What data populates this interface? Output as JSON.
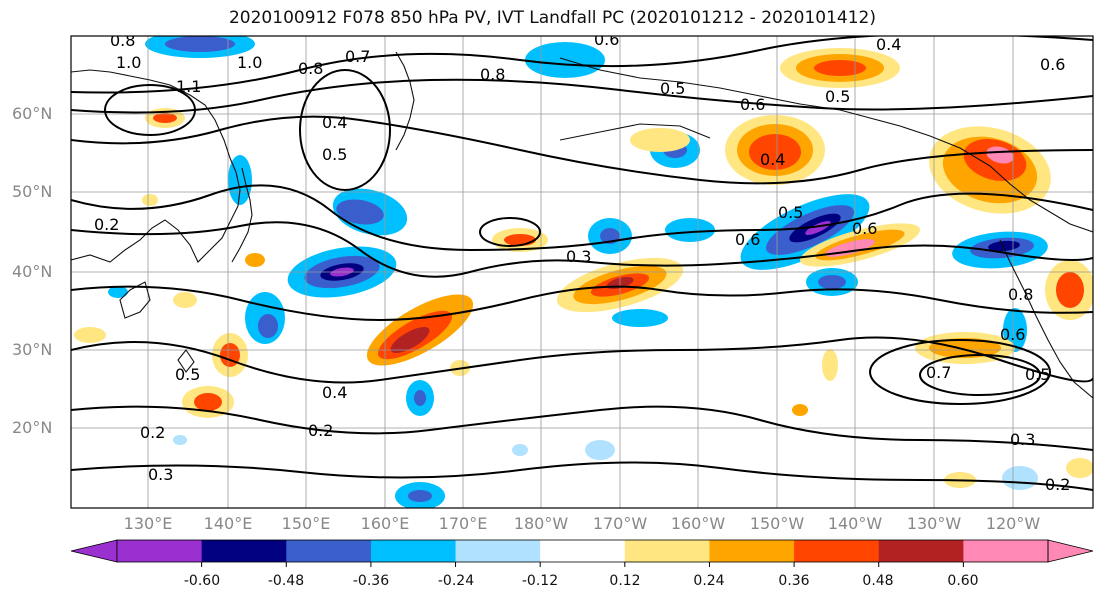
{
  "title": "2020100912 F078 850 hPa PV, IVT Landfall PC (2020101212 - 2020101412)",
  "lat_labels": [
    "60°N",
    "50°N",
    "40°N",
    "30°N",
    "20°N"
  ],
  "lon_labels": [
    "130°E",
    "140°E",
    "150°E",
    "160°E",
    "170°E",
    "180°W",
    "170°W",
    "160°W",
    "150°W",
    "140°W",
    "130°W",
    "120°W"
  ],
  "colorbar": {
    "ticks": [
      "-0.60",
      "-0.48",
      "-0.36",
      "-0.24",
      "-0.12",
      "0.12",
      "0.24",
      "0.36",
      "0.48",
      "0.60"
    ],
    "colors": [
      "#9b30d0",
      "#000080",
      "#3a5fcd",
      "#00bfff",
      "#b0e2ff",
      "#ffffff",
      "#ffe680",
      "#ffa500",
      "#ff4500",
      "#b22222",
      "#ff88b4"
    ]
  },
  "contour_labels": [
    "0.8",
    "1.0",
    "1.0",
    "1.1",
    "0.8",
    "0.7",
    "0.8",
    "0.6",
    "0.5",
    "0.4",
    "0.5",
    "0.4",
    "0.6",
    "0.5",
    "0.6",
    "0.2",
    "0.3",
    "0.4",
    "0.5",
    "0.6",
    "0.8",
    "0.6",
    "0.6",
    "0.7",
    "0.5",
    "0.3",
    "0.2",
    "0.2",
    "0.3",
    "0.2",
    "0.5",
    "0.4"
  ]
}
